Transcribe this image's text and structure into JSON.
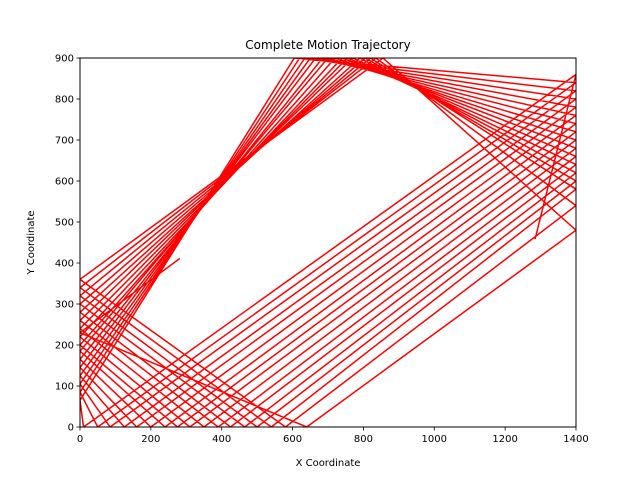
{
  "chart_data": {
    "type": "line",
    "title": "Complete Motion Trajectory",
    "xlabel": "X Coordinate",
    "ylabel": "Y Coordinate",
    "xlim": [
      0,
      1400
    ],
    "ylim": [
      0,
      900
    ],
    "xticks": [
      "0",
      "200",
      "400",
      "600",
      "800",
      "1000",
      "1200",
      "1400"
    ],
    "yticks": [
      "0",
      "100",
      "200",
      "300",
      "400",
      "500",
      "600",
      "700",
      "800",
      "900"
    ],
    "grid": false,
    "legend": "none",
    "series": [
      {
        "color": "#ff0000",
        "x": [
          280,
          0,
          640,
          1400,
          855,
          0,
          580,
          1400,
          835,
          0,
          540,
          1400,
          820,
          0,
          500,
          1400,
          805,
          0,
          465,
          1400,
          790,
          0,
          425,
          1400,
          770,
          0,
          390,
          1400,
          755,
          0,
          350,
          1400,
          740,
          0,
          310,
          1400,
          720,
          0,
          275,
          1400,
          700,
          0,
          240,
          1400,
          685,
          0,
          200,
          1400,
          665,
          0,
          160,
          1400,
          650,
          0,
          125,
          1400,
          635,
          0,
          85,
          1400,
          620,
          0,
          50,
          1400,
          605,
          0,
          10,
          1400,
          1285
        ],
        "y": [
          410,
          230,
          0,
          480,
          900,
          360,
          0,
          540,
          900,
          340,
          0,
          580,
          900,
          320,
          0,
          600,
          900,
          300,
          0,
          620,
          900,
          280,
          0,
          640,
          900,
          260,
          0,
          660,
          900,
          240,
          0,
          680,
          900,
          220,
          0,
          700,
          900,
          200,
          0,
          720,
          900,
          185,
          0,
          740,
          900,
          165,
          0,
          760,
          900,
          145,
          0,
          780,
          900,
          125,
          0,
          800,
          900,
          105,
          0,
          820,
          900,
          85,
          0,
          840,
          900,
          65,
          0,
          860,
          460
        ]
      }
    ]
  }
}
